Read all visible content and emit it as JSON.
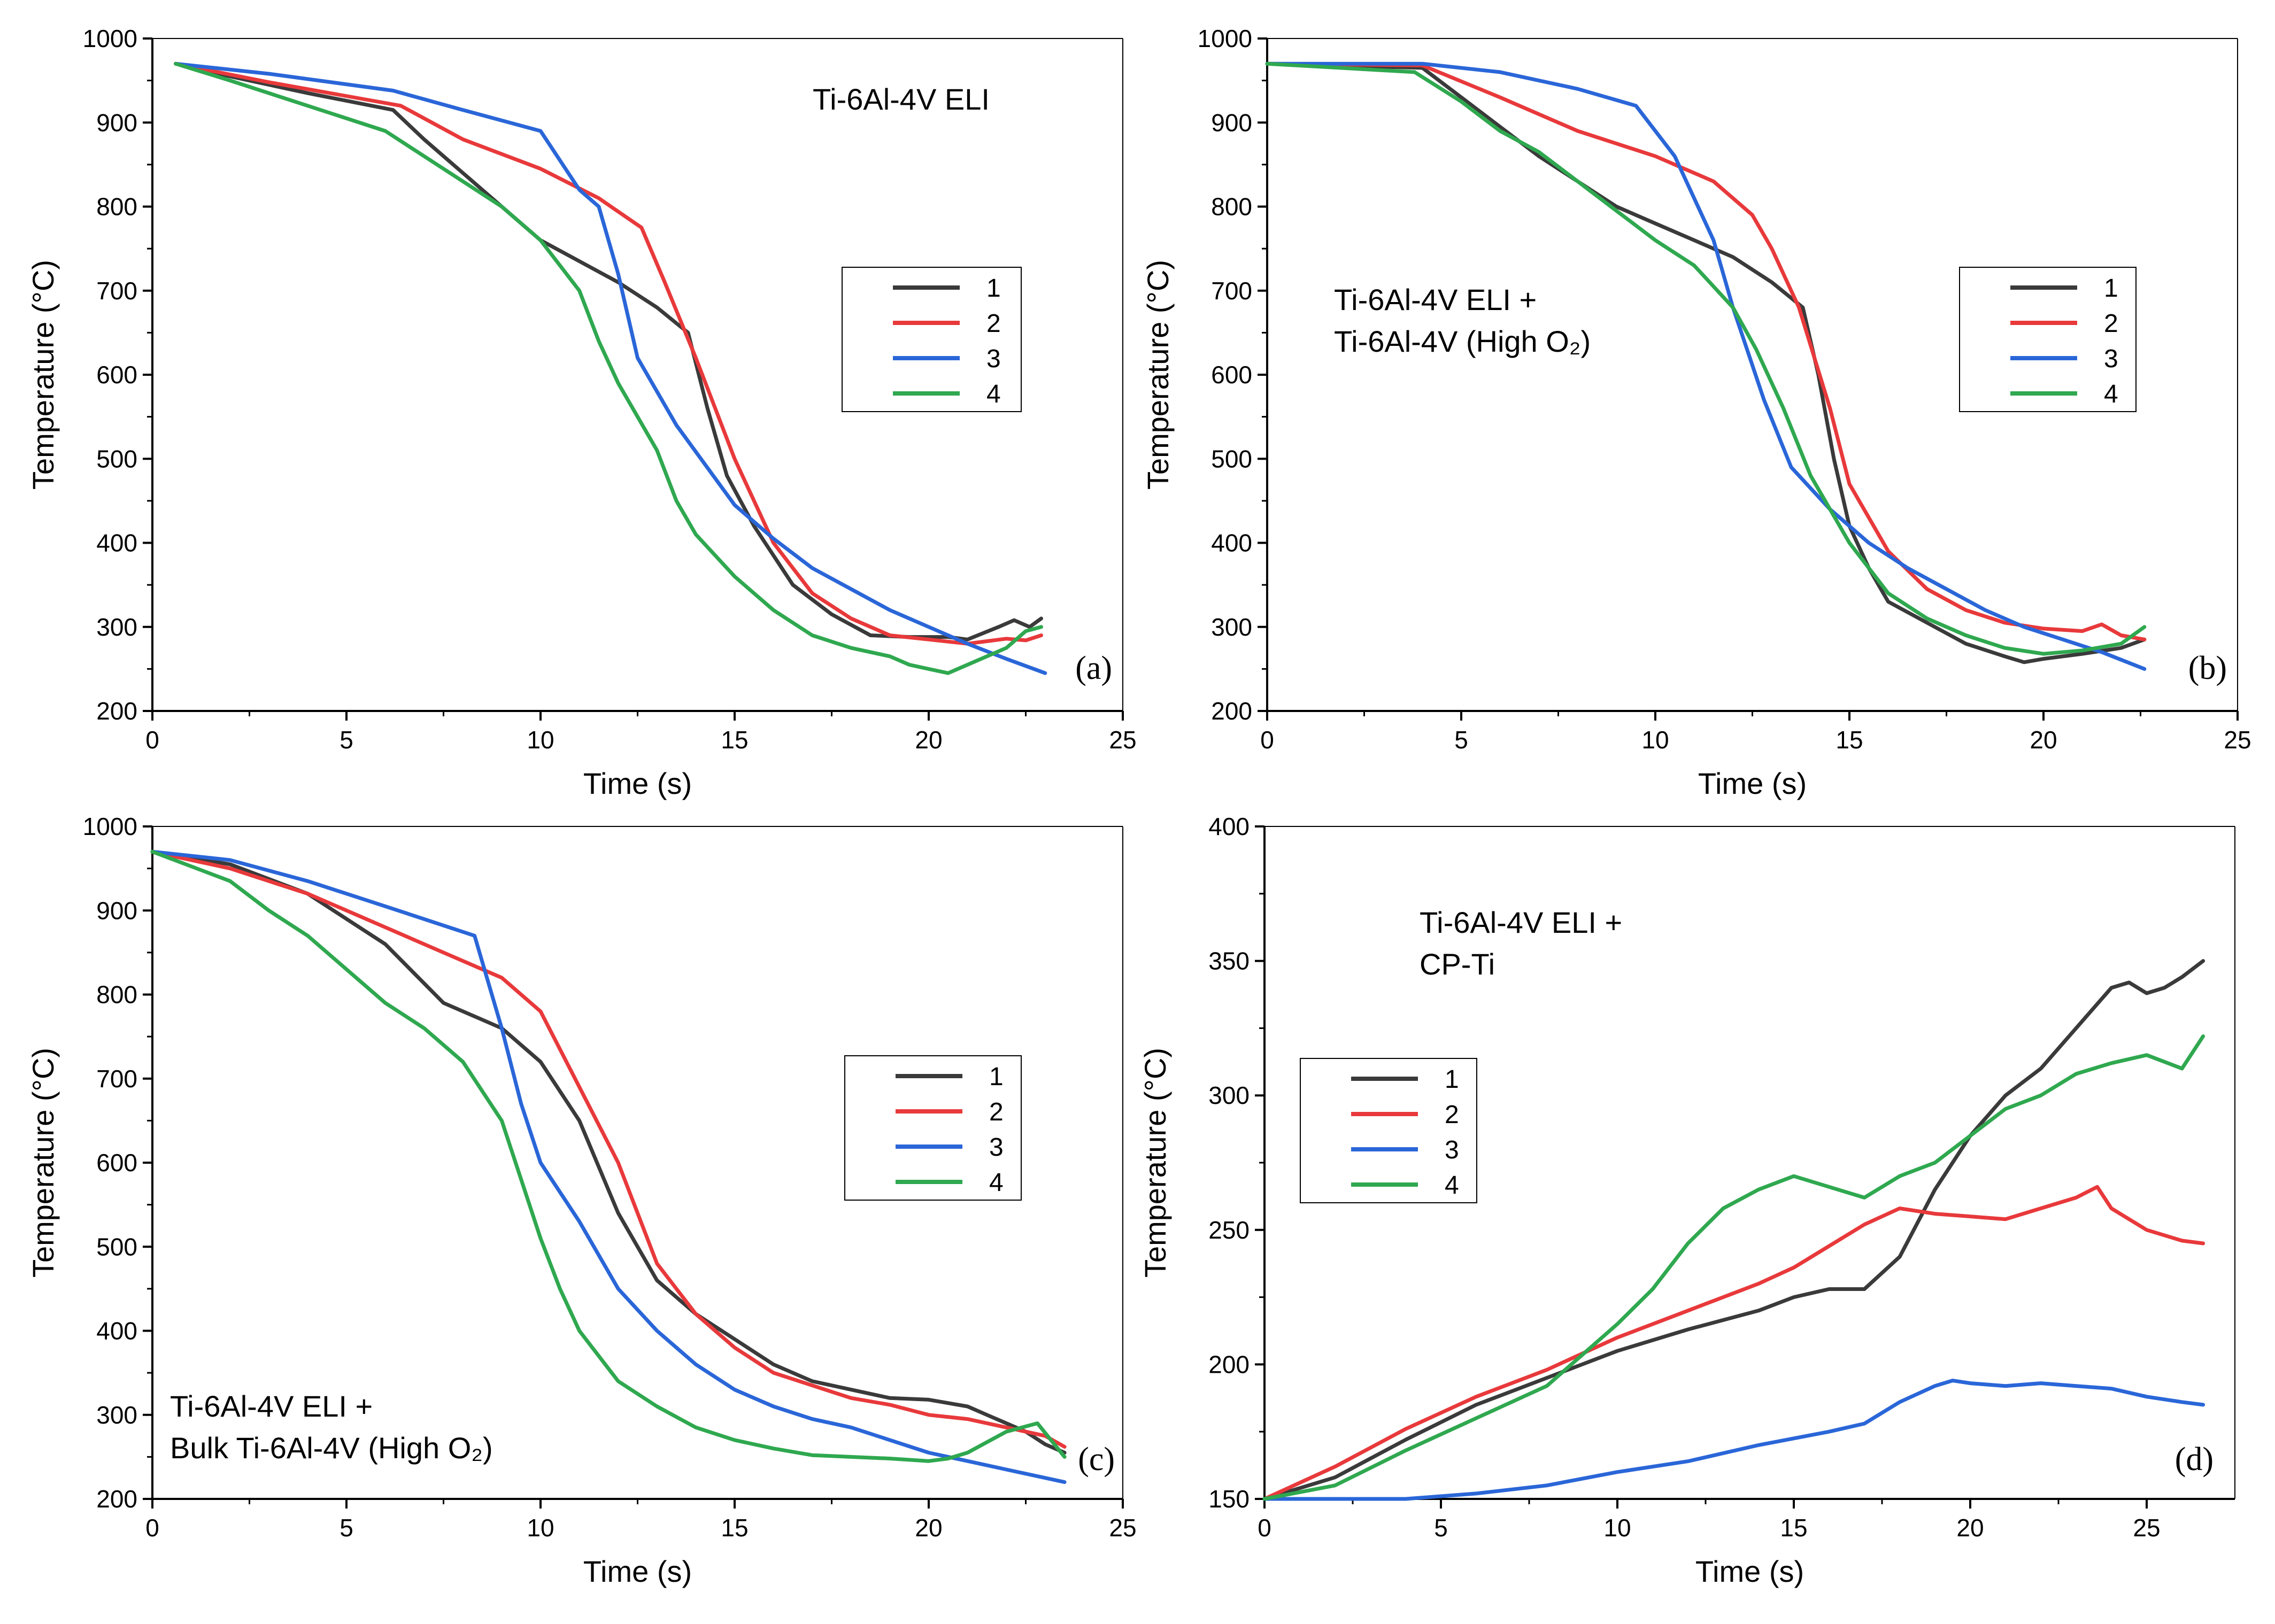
{
  "colors": {
    "s1": "#3a3a3a",
    "s2": "#e8393b",
    "s3": "#2a66d8",
    "s4": "#2fa84f"
  },
  "charts": [
    {
      "panel": "a",
      "note_lines": [
        "Ti-6Al-4V ELI"
      ],
      "legend_pos": "right-middle",
      "chart_data": {
        "type": "line",
        "title": "",
        "xlabel": "Time (s)",
        "ylabel": "Temperature (°C)",
        "xlim": [
          0,
          25
        ],
        "ylim": [
          200,
          1000
        ],
        "xticks": [
          0,
          5,
          10,
          15,
          20,
          25
        ],
        "yticks": [
          200,
          300,
          400,
          500,
          600,
          700,
          800,
          900,
          1000
        ],
        "tag": "(a)",
        "series": [
          {
            "name": "1",
            "x": [
              0.6,
              2,
              4,
              6.2,
              7,
              8,
              9,
              10,
              11,
              12,
              13,
              13.8,
              14.3,
              14.8,
              15.5,
              16.5,
              17.5,
              18.5,
              19.5,
              20.5,
              21,
              21.8,
              22.2,
              22.6,
              22.9
            ],
            "y": [
              970,
              955,
              935,
              915,
              880,
              840,
              800,
              760,
              735,
              710,
              680,
              650,
              560,
              480,
              420,
              350,
              315,
              290,
              288,
              288,
              285,
              300,
              308,
              300,
              310
            ]
          },
          {
            "name": "2",
            "x": [
              0.6,
              3,
              6.4,
              8,
              10,
              11.5,
              12.6,
              13.2,
              14,
              15,
              16,
              17,
              18,
              19,
              20,
              21,
              21.5,
              22,
              22.5,
              22.9
            ],
            "y": [
              970,
              948,
              920,
              880,
              845,
              810,
              775,
              710,
              620,
              500,
              400,
              340,
              310,
              290,
              285,
              280,
              283,
              286,
              284,
              290
            ]
          },
          {
            "name": "3",
            "x": [
              0.6,
              3,
              6.2,
              8,
              10,
              11,
              11.5,
              12,
              12.5,
              13.5,
              15,
              16,
              17,
              18,
              19,
              20,
              21,
              22,
              23
            ],
            "y": [
              970,
              958,
              938,
              915,
              890,
              820,
              800,
              720,
              620,
              540,
              445,
              405,
              370,
              345,
              320,
              300,
              280,
              262,
              245
            ]
          },
          {
            "name": "4",
            "x": [
              0.6,
              2,
              4,
              6,
              7,
              8,
              9,
              10,
              11,
              11.5,
              12,
              13,
              13.5,
              14,
              15,
              16,
              17,
              18,
              19,
              19.5,
              20,
              20.5,
              21,
              22,
              22.5,
              22.9
            ],
            "y": [
              970,
              950,
              920,
              890,
              860,
              830,
              800,
              760,
              700,
              640,
              590,
              510,
              450,
              410,
              360,
              320,
              290,
              275,
              265,
              255,
              250,
              245,
              255,
              275,
              295,
              300
            ]
          }
        ]
      }
    },
    {
      "panel": "b",
      "note_lines": [
        "Ti-6Al-4V ELI +",
        "Ti-6Al-4V (High O₂)"
      ],
      "legend_pos": "right-middle",
      "chart_data": {
        "type": "line",
        "title": "",
        "xlabel": "Time (s)",
        "ylabel": "Temperature (°C)",
        "xlim": [
          0,
          25
        ],
        "ylim": [
          200,
          1000
        ],
        "xticks": [
          0,
          5,
          10,
          15,
          20,
          25
        ],
        "yticks": [
          200,
          300,
          400,
          500,
          600,
          700,
          800,
          900,
          1000
        ],
        "tag": "(b)",
        "series": [
          {
            "name": "1",
            "x": [
              0,
              4,
              5,
              7,
              9,
              10,
              12,
              13,
              13.8,
              14.2,
              14.6,
              15,
              15.5,
              16,
              17,
              18,
              19,
              19.5,
              20,
              21,
              22,
              22.6
            ],
            "y": [
              970,
              965,
              930,
              860,
              800,
              780,
              740,
              710,
              680,
              600,
              500,
              420,
              370,
              330,
              305,
              280,
              265,
              258,
              262,
              268,
              275,
              285
            ]
          },
          {
            "name": "2",
            "x": [
              0,
              4,
              6,
              8,
              10,
              11.5,
              12.5,
              13,
              13.7,
              14.5,
              15,
              16,
              17,
              18,
              19,
              20,
              21,
              21.5,
              22,
              22.6
            ],
            "y": [
              970,
              968,
              930,
              890,
              860,
              830,
              790,
              750,
              680,
              560,
              470,
              390,
              345,
              320,
              305,
              298,
              295,
              303,
              290,
              285
            ]
          },
          {
            "name": "3",
            "x": [
              0,
              4,
              6,
              8,
              9.5,
              10.5,
              11.5,
              12,
              12.8,
              13.5,
              14.5,
              15.5,
              16.5,
              17.5,
              18.5,
              19.5,
              20.5,
              21.5,
              22.6
            ],
            "y": [
              970,
              970,
              960,
              940,
              920,
              860,
              760,
              680,
              570,
              490,
              440,
              400,
              370,
              345,
              320,
              300,
              285,
              270,
              250
            ]
          },
          {
            "name": "4",
            "x": [
              0,
              3.8,
              5,
              6,
              7,
              8,
              9,
              10,
              11,
              12,
              12.6,
              13.3,
              14,
              15,
              16,
              17,
              18,
              19,
              20,
              21,
              22,
              22.6
            ],
            "y": [
              970,
              960,
              925,
              890,
              865,
              830,
              795,
              760,
              730,
              680,
              630,
              560,
              480,
              400,
              340,
              310,
              290,
              275,
              268,
              272,
              280,
              300
            ]
          }
        ]
      }
    },
    {
      "panel": "c",
      "note_lines": [
        "Ti-6Al-4V ELI +",
        "Bulk Ti-6Al-4V (High O₂)"
      ],
      "legend_pos": "right-middle",
      "chart_data": {
        "type": "line",
        "title": "",
        "xlabel": "Time (s)",
        "ylabel": "Temperature (°C)",
        "xlim": [
          0,
          25
        ],
        "ylim": [
          200,
          1000
        ],
        "xticks": [
          0,
          5,
          10,
          15,
          20,
          25
        ],
        "yticks": [
          200,
          300,
          400,
          500,
          600,
          700,
          800,
          900,
          1000
        ],
        "tag": "(c)",
        "series": [
          {
            "name": "1",
            "x": [
              0,
              2,
              4,
              6,
              7.5,
              9,
              10,
              11,
              12,
              13,
              14,
              15,
              16,
              17,
              18,
              19,
              20,
              21,
              21.5,
              22,
              22.5,
              23,
              23.5
            ],
            "y": [
              970,
              955,
              920,
              860,
              790,
              760,
              720,
              650,
              540,
              460,
              420,
              390,
              360,
              340,
              330,
              320,
              318,
              310,
              300,
              290,
              280,
              265,
              255
            ]
          },
          {
            "name": "2",
            "x": [
              0,
              2,
              4,
              6,
              7.5,
              9,
              10,
              11,
              12,
              13,
              14,
              15,
              16,
              17,
              18,
              19,
              20,
              21,
              22,
              23,
              23.5
            ],
            "y": [
              970,
              950,
              920,
              880,
              850,
              820,
              780,
              690,
              600,
              480,
              420,
              380,
              350,
              335,
              320,
              312,
              300,
              295,
              285,
              275,
              262
            ]
          },
          {
            "name": "3",
            "x": [
              0,
              2,
              4,
              6,
              8.3,
              9,
              9.5,
              10,
              11,
              12,
              13,
              14,
              15,
              16,
              17,
              18,
              19,
              20,
              21,
              22,
              23,
              23.5
            ],
            "y": [
              970,
              960,
              935,
              905,
              870,
              760,
              670,
              600,
              530,
              450,
              400,
              360,
              330,
              310,
              295,
              285,
              270,
              255,
              245,
              235,
              225,
              220
            ]
          },
          {
            "name": "4",
            "x": [
              0,
              2,
              3,
              4,
              5,
              6,
              7,
              8,
              9,
              9.5,
              10,
              10.5,
              11,
              12,
              13,
              14,
              15,
              16,
              17,
              18,
              19,
              20,
              20.5,
              21,
              22,
              22.8,
              23.5
            ],
            "y": [
              970,
              935,
              900,
              870,
              830,
              790,
              760,
              720,
              650,
              580,
              510,
              450,
              400,
              340,
              310,
              285,
              270,
              260,
              252,
              250,
              248,
              245,
              248,
              255,
              280,
              290,
              250
            ]
          }
        ]
      }
    },
    {
      "panel": "d",
      "note_lines": [
        "Ti-6Al-4V ELI +",
        "CP-Ti"
      ],
      "legend_pos": "left-middle",
      "chart_data": {
        "type": "line",
        "title": "",
        "xlabel": "Time (s)",
        "ylabel": "Temperature (°C)",
        "xlim": [
          0,
          27.5
        ],
        "ylim": [
          150,
          400
        ],
        "xticks": [
          0,
          5,
          10,
          15,
          20,
          25
        ],
        "yticks": [
          150,
          200,
          250,
          300,
          350,
          400
        ],
        "tag": "(d)",
        "series": [
          {
            "name": "1",
            "x": [
              0,
              2,
              4,
              6,
              8,
              10,
              12,
              14,
              15,
              16,
              17,
              18,
              19,
              20,
              21,
              22,
              23,
              24,
              24.5,
              25,
              25.5,
              26,
              26.6
            ],
            "y": [
              150,
              158,
              172,
              185,
              195,
              205,
              213,
              220,
              225,
              228,
              228,
              240,
              265,
              285,
              300,
              310,
              325,
              340,
              342,
              338,
              340,
              344,
              350
            ]
          },
          {
            "name": "2",
            "x": [
              0,
              2,
              4,
              6,
              8,
              10,
              12,
              14,
              15,
              16,
              17,
              18,
              19,
              20,
              21,
              22,
              23,
              23.6,
              24,
              25,
              26,
              26.6
            ],
            "y": [
              150,
              162,
              176,
              188,
              198,
              210,
              220,
              230,
              236,
              244,
              252,
              258,
              256,
              255,
              254,
              258,
              262,
              266,
              258,
              250,
              246,
              245
            ]
          },
          {
            "name": "3",
            "x": [
              0,
              2,
              4,
              6,
              8,
              10,
              12,
              14,
              16,
              17,
              18,
              19,
              19.5,
              20,
              21,
              22,
              23,
              24,
              25,
              26,
              26.6
            ],
            "y": [
              150,
              150,
              150,
              152,
              155,
              160,
              164,
              170,
              175,
              178,
              186,
              192,
              194,
              193,
              192,
              193,
              192,
              191,
              188,
              186,
              185
            ]
          },
          {
            "name": "4",
            "x": [
              0,
              2,
              4,
              6,
              8,
              10,
              11,
              12,
              13,
              14,
              15,
              16,
              17,
              18,
              19,
              20,
              21,
              22,
              23,
              24,
              25,
              26,
              26.6
            ],
            "y": [
              150,
              155,
              168,
              180,
              192,
              215,
              228,
              245,
              258,
              265,
              270,
              266,
              262,
              270,
              275,
              285,
              295,
              300,
              308,
              312,
              315,
              310,
              322
            ]
          }
        ]
      }
    }
  ]
}
